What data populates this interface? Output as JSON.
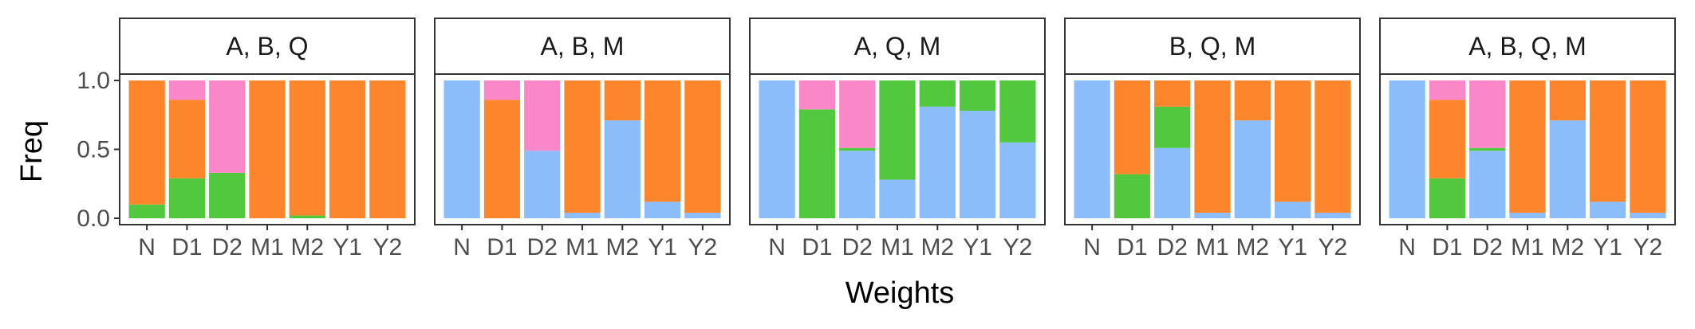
{
  "chart_data": {
    "type": "bar",
    "stacked": true,
    "normalized": true,
    "xlabel": "Weights",
    "ylabel": "Freq",
    "ylim": [
      0,
      1
    ],
    "yticks": [
      0.0,
      0.5,
      1.0
    ],
    "ytick_labels": [
      "0.0",
      "0.5",
      "1.0"
    ],
    "categories": [
      "N",
      "D1",
      "D2",
      "M1",
      "M2",
      "Y1",
      "Y2"
    ],
    "legend": "none",
    "grid": false,
    "colors": {
      "blue": "#8bbdfb",
      "green": "#52c83f",
      "orange": "#fd862d",
      "pink": "#fa88c8"
    },
    "stack_order": [
      "blue",
      "green",
      "orange",
      "pink"
    ],
    "panels": [
      {
        "title": "A, B, Q",
        "values": {
          "blue": [
            0.0,
            0.0,
            0.0,
            0.0,
            0.0,
            0.0,
            0.0
          ],
          "green": [
            0.1,
            0.29,
            0.33,
            0.0,
            0.02,
            0.0,
            0.0
          ],
          "orange": [
            0.9,
            0.57,
            0.0,
            1.0,
            0.98,
            1.0,
            1.0
          ],
          "pink": [
            0.0,
            0.14,
            0.67,
            0.0,
            0.0,
            0.0,
            0.0
          ]
        }
      },
      {
        "title": "A, B, M",
        "values": {
          "blue": [
            1.0,
            0.0,
            0.49,
            0.04,
            0.71,
            0.12,
            0.04
          ],
          "green": [
            0.0,
            0.0,
            0.0,
            0.0,
            0.0,
            0.0,
            0.0
          ],
          "orange": [
            0.0,
            0.86,
            0.0,
            0.96,
            0.29,
            0.88,
            0.96
          ],
          "pink": [
            0.0,
            0.14,
            0.51,
            0.0,
            0.0,
            0.0,
            0.0
          ]
        }
      },
      {
        "title": "A, Q, M",
        "values": {
          "blue": [
            1.0,
            0.0,
            0.49,
            0.28,
            0.81,
            0.78,
            0.55
          ],
          "green": [
            0.0,
            0.79,
            0.02,
            0.72,
            0.19,
            0.22,
            0.45
          ],
          "orange": [
            0.0,
            0.0,
            0.0,
            0.0,
            0.0,
            0.0,
            0.0
          ],
          "pink": [
            0.0,
            0.21,
            0.49,
            0.0,
            0.0,
            0.0,
            0.0
          ]
        }
      },
      {
        "title": "B, Q, M",
        "values": {
          "blue": [
            1.0,
            0.0,
            0.51,
            0.04,
            0.71,
            0.12,
            0.04
          ],
          "green": [
            0.0,
            0.32,
            0.3,
            0.0,
            0.0,
            0.0,
            0.0
          ],
          "orange": [
            0.0,
            0.68,
            0.19,
            0.96,
            0.29,
            0.88,
            0.96
          ],
          "pink": [
            0.0,
            0.0,
            0.0,
            0.0,
            0.0,
            0.0,
            0.0
          ]
        }
      },
      {
        "title": "A, B, Q, M",
        "values": {
          "blue": [
            1.0,
            0.0,
            0.49,
            0.04,
            0.71,
            0.12,
            0.04
          ],
          "green": [
            0.0,
            0.29,
            0.02,
            0.0,
            0.0,
            0.0,
            0.0
          ],
          "orange": [
            0.0,
            0.57,
            0.0,
            0.96,
            0.29,
            0.88,
            0.96
          ],
          "pink": [
            0.0,
            0.14,
            0.49,
            0.0,
            0.0,
            0.0,
            0.0
          ]
        }
      }
    ]
  }
}
